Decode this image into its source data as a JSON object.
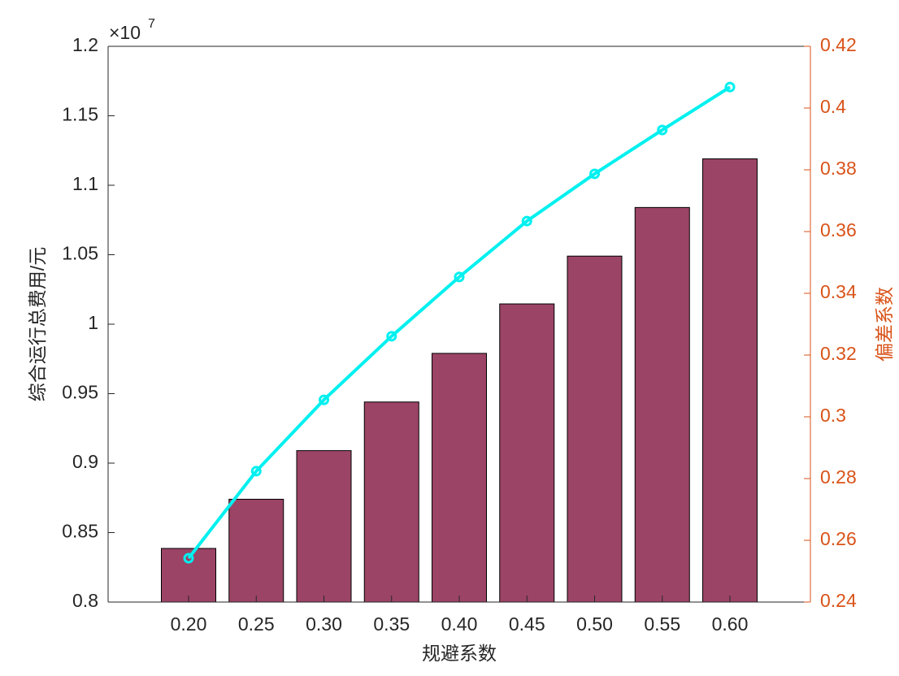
{
  "chart_data": {
    "type": "bar_line",
    "categories": [
      "0.20",
      "0.25",
      "0.30",
      "0.35",
      "0.40",
      "0.45",
      "0.50",
      "0.55",
      "0.60"
    ],
    "x_label": "规避系数",
    "y_label": "综合运行总费用/元",
    "y2_label": "偏差系数",
    "y_multiplier_base": "×10",
    "y_multiplier_exponent": "7",
    "series": [
      {
        "type": "bar",
        "color": "#9b4466",
        "values": [
          0.8386,
          0.874,
          0.909,
          0.944,
          0.979,
          1.0146,
          1.049,
          1.084,
          1.119
        ]
      },
      {
        "type": "line",
        "axis": "y2",
        "color": "#00f0f0",
        "values": [
          0.2542,
          0.2824,
          0.3055,
          0.3261,
          0.3453,
          0.3634,
          0.3787,
          0.3929,
          0.4068
        ]
      }
    ],
    "ylim": [
      0.8,
      1.2
    ],
    "yticks": [
      0.8,
      0.85,
      0.9,
      0.95,
      1,
      1.05,
      1.1,
      1.15,
      1.2
    ],
    "y2lim": [
      0.24,
      0.42
    ],
    "y2ticks": [
      0.24,
      0.26,
      0.28,
      0.3,
      0.32,
      0.34,
      0.36,
      0.38,
      0.4,
      0.42
    ],
    "y2_color": "#d95319"
  }
}
